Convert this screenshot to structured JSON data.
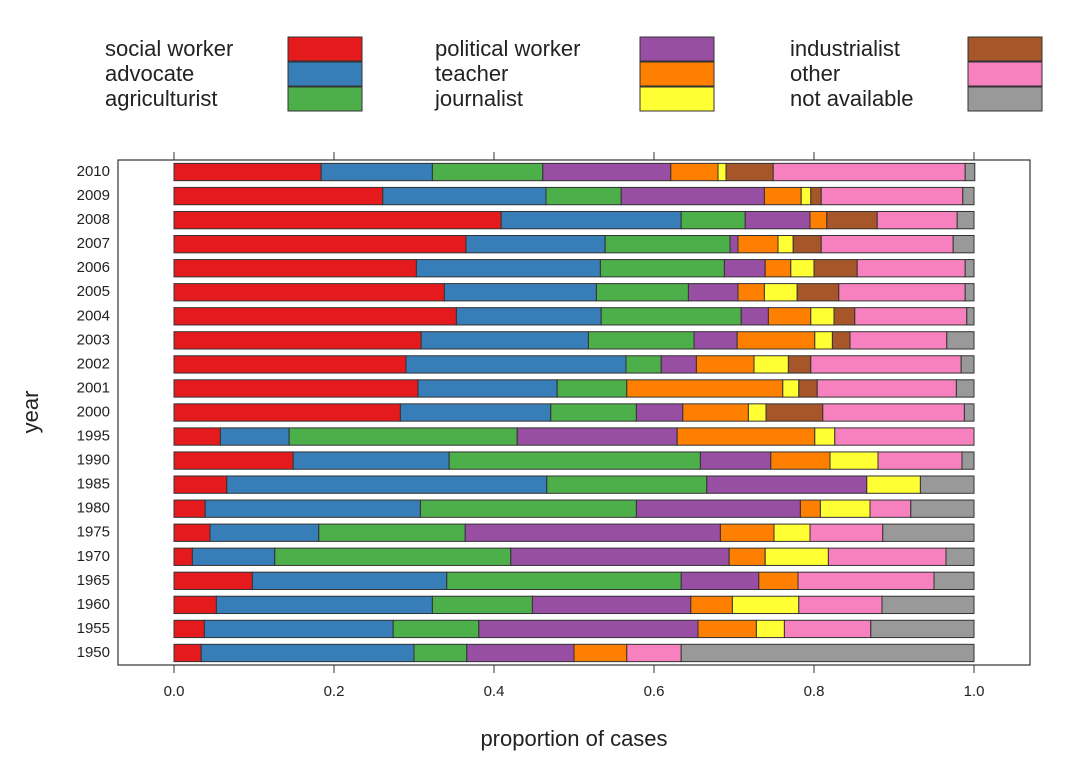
{
  "chart_data": {
    "type": "stacked-barh",
    "xlabel": "proportion of cases",
    "ylabel": "year",
    "categories": [
      "1950",
      "1955",
      "1960",
      "1965",
      "1970",
      "1975",
      "1980",
      "1985",
      "1990",
      "1995",
      "2000",
      "2001",
      "2002",
      "2003",
      "2004",
      "2005",
      "2006",
      "2007",
      "2008",
      "2009",
      "2010"
    ],
    "xlim": [
      -0.07,
      1.07
    ],
    "xticks": [
      {
        "value": 0,
        "label": "0.0"
      },
      0.2,
      0.4,
      0.6,
      0.8,
      {
        "value": 1,
        "label": "1.0"
      }
    ],
    "series": [
      {
        "name": "social worker",
        "color": "#e41a1c",
        "values": [
          0.034,
          0.038,
          0.053,
          0.098,
          0.023,
          0.045,
          0.039,
          0.066,
          0.149,
          0.058,
          0.283,
          0.305,
          0.29,
          0.309,
          0.353,
          0.338,
          0.303,
          0.365,
          0.409,
          0.261,
          0.184
        ]
      },
      {
        "name": "advocate",
        "color": "#377eb8",
        "values": [
          0.266,
          0.236,
          0.27,
          0.243,
          0.103,
          0.136,
          0.269,
          0.4,
          0.195,
          0.086,
          0.188,
          0.174,
          0.275,
          0.209,
          0.181,
          0.19,
          0.23,
          0.174,
          0.225,
          0.204,
          0.139
        ]
      },
      {
        "name": "agriculturist",
        "color": "#4daf4a",
        "values": [
          0.066,
          0.107,
          0.125,
          0.293,
          0.295,
          0.183,
          0.27,
          0.2,
          0.314,
          0.285,
          0.107,
          0.087,
          0.044,
          0.132,
          0.175,
          0.115,
          0.155,
          0.156,
          0.08,
          0.094,
          0.138
        ]
      },
      {
        "name": "political worker",
        "color": "#984ea3",
        "values": [
          0.134,
          0.274,
          0.198,
          0.097,
          0.273,
          0.319,
          0.205,
          0.2,
          0.088,
          0.2,
          0.058,
          0,
          0.044,
          0.054,
          0.034,
          0.062,
          0.051,
          0.01,
          0.081,
          0.179,
          0.16
        ]
      },
      {
        "name": "teacher",
        "color": "#ff7f00",
        "values": [
          0.066,
          0.073,
          0.052,
          0.049,
          0.045,
          0.067,
          0.025,
          0,
          0.074,
          0.172,
          0.082,
          0.195,
          0.072,
          0.097,
          0.053,
          0.033,
          0.032,
          0.05,
          0.021,
          0.046,
          0.059
        ]
      },
      {
        "name": "journalist",
        "color": "#ffff33",
        "values": [
          0,
          0.035,
          0.083,
          0,
          0.079,
          0.045,
          0.062,
          0.067,
          0.06,
          0.025,
          0.022,
          0.02,
          0.043,
          0.022,
          0.029,
          0.041,
          0.029,
          0.019,
          0,
          0.012,
          0.01
        ]
      },
      {
        "name": "industrialist",
        "color": "#a65628",
        "values": [
          0,
          0,
          0,
          0,
          0,
          0,
          0,
          0,
          0,
          0,
          0.071,
          0.023,
          0.028,
          0.022,
          0.026,
          0.052,
          0.054,
          0.035,
          0.063,
          0.013,
          0.059
        ]
      },
      {
        "name": "other",
        "color": "#f781bf",
        "values": [
          0.068,
          0.108,
          0.104,
          0.17,
          0.147,
          0.091,
          0.051,
          0,
          0.105,
          0.174,
          0.177,
          0.174,
          0.188,
          0.121,
          0.14,
          0.158,
          0.135,
          0.165,
          0.1,
          0.177,
          0.24
        ]
      },
      {
        "name": "not available",
        "color": "#999999",
        "values": [
          0.366,
          0.129,
          0.115,
          0.05,
          0.035,
          0.114,
          0.079,
          0.067,
          0.015,
          0,
          0.012,
          0.022,
          0.016,
          0.034,
          0.009,
          0.011,
          0.011,
          0.026,
          0.021,
          0.014,
          0.012
        ]
      }
    ]
  }
}
